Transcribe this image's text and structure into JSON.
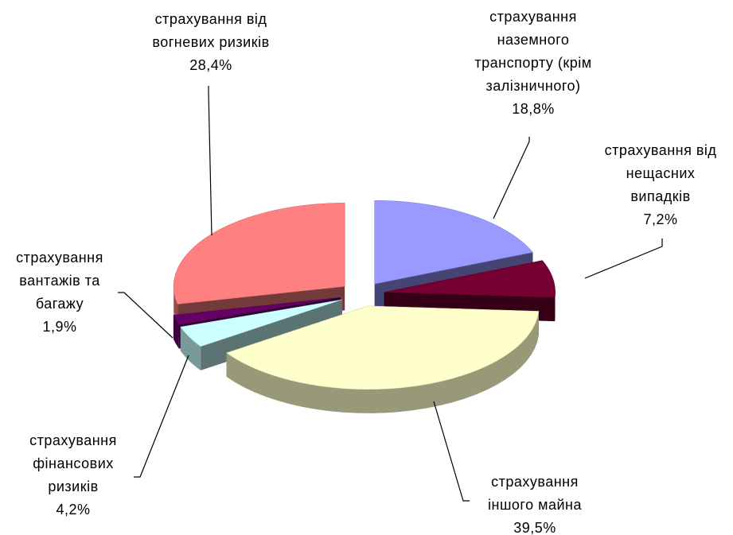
{
  "chart_data": {
    "type": "pie3d",
    "categories": [
      [
        "страхування",
        "наземного",
        "транспорту (крім",
        "залізничного)"
      ],
      [
        "страхування від",
        "нещасних",
        "випадків"
      ],
      [
        "страхування",
        "іншого майна"
      ],
      [
        "страхування",
        "фінансових",
        "ризиків"
      ],
      [
        "страхування",
        "вантажів та",
        "багажу"
      ],
      [
        "страхування від",
        "вогневих ризиків"
      ]
    ],
    "values": [
      18.8,
      7.2,
      39.5,
      4.2,
      1.9,
      28.4
    ],
    "value_labels": [
      "18,8%",
      "7,2%",
      "39,5%",
      "4,2%",
      "1,9%",
      "28,4%"
    ],
    "colors": [
      "#9999ff",
      "#770033",
      "#ffffcc",
      "#ccffff",
      "#660066",
      "#ff8080"
    ]
  }
}
